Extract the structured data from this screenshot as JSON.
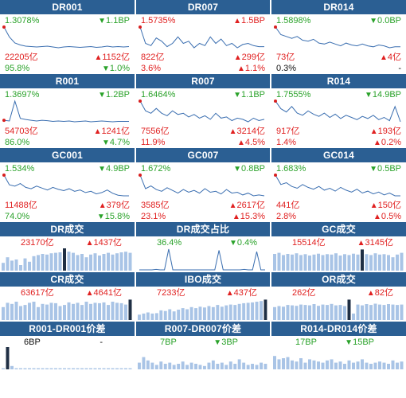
{
  "colors": {
    "header": "#2b5f93",
    "up": "#e02020",
    "down": "#2aa22a",
    "line": "#3a6eb0",
    "bar": "#a9c4e6",
    "bar_dark": "#1f2f44"
  },
  "rate_tiles": [
    {
      "title": "DR001",
      "rate": "1.3078%",
      "rate_color": "green",
      "change": "1.1BP",
      "change_dir": "down",
      "volume": "22205亿",
      "volume_change": "1152亿",
      "volume_dir": "up",
      "share": "95.8%",
      "share_color": "green",
      "share_change": "1.0%",
      "share_dir": "down",
      "series": [
        1.8,
        1.55,
        1.4,
        1.35,
        1.32,
        1.31,
        1.3,
        1.31,
        1.32,
        1.3,
        1.28,
        1.3,
        1.31,
        1.3,
        1.29,
        1.3,
        1.31,
        1.29,
        1.3,
        1.32,
        1.3,
        1.31,
        1.3,
        1.31
      ]
    },
    {
      "title": "DR007",
      "rate": "1.5735%",
      "rate_color": "red",
      "change": "1.5BP",
      "change_dir": "up",
      "volume": "822亿",
      "volume_change": "299亿",
      "volume_dir": "up",
      "share": "3.6%",
      "share_color": "red",
      "share_change": "1.1%",
      "share_dir": "up",
      "series": [
        1.75,
        1.6,
        1.58,
        1.65,
        1.62,
        1.57,
        1.6,
        1.66,
        1.6,
        1.62,
        1.56,
        1.6,
        1.58,
        1.66,
        1.6,
        1.64,
        1.58,
        1.6,
        1.56,
        1.59,
        1.6,
        1.58,
        1.57,
        1.57
      ]
    },
    {
      "title": "DR014",
      "rate": "1.5898%",
      "rate_color": "green",
      "change": "0.0BP",
      "change_dir": "down",
      "volume": "73亿",
      "volume_change": "4亿",
      "volume_dir": "up",
      "share": "0.3%",
      "share_color": "black",
      "share_change": "-",
      "share_dir": "none",
      "series": [
        1.8,
        1.72,
        1.7,
        1.68,
        1.7,
        1.66,
        1.65,
        1.67,
        1.63,
        1.62,
        1.64,
        1.62,
        1.6,
        1.63,
        1.61,
        1.6,
        1.62,
        1.6,
        1.59,
        1.61,
        1.6,
        1.58,
        1.59,
        1.59
      ]
    },
    {
      "title": "R001",
      "rate": "1.3697%",
      "rate_color": "green",
      "change": "1.2BP",
      "change_dir": "down",
      "volume": "54703亿",
      "volume_change": "1241亿",
      "volume_dir": "up",
      "share": "86.0%",
      "share_color": "green",
      "share_change": "4.7%",
      "share_dir": "down",
      "series": [
        1.4,
        1.38,
        1.9,
        1.45,
        1.42,
        1.4,
        1.38,
        1.4,
        1.39,
        1.37,
        1.38,
        1.37,
        1.38,
        1.36,
        1.37,
        1.38,
        1.36,
        1.37,
        1.38,
        1.37,
        1.36,
        1.37,
        1.37,
        1.37
      ]
    },
    {
      "title": "R007",
      "rate": "1.6464%",
      "rate_color": "green",
      "change": "1.1BP",
      "change_dir": "down",
      "volume": "7556亿",
      "volume_change": "3214亿",
      "volume_dir": "up",
      "share": "11.9%",
      "share_color": "red",
      "share_change": "4.5%",
      "share_dir": "up",
      "series": [
        1.8,
        1.72,
        1.7,
        1.74,
        1.7,
        1.68,
        1.72,
        1.69,
        1.7,
        1.67,
        1.69,
        1.66,
        1.68,
        1.65,
        1.7,
        1.66,
        1.67,
        1.64,
        1.66,
        1.65,
        1.63,
        1.66,
        1.64,
        1.65
      ]
    },
    {
      "title": "R014",
      "rate": "1.7555%",
      "rate_color": "green",
      "change": "14.9BP",
      "change_dir": "down",
      "volume": "917亿",
      "volume_change": "193亿",
      "volume_dir": "up",
      "share": "1.4%",
      "share_color": "red",
      "share_change": "0.2%",
      "share_dir": "up",
      "series": [
        1.95,
        1.88,
        1.85,
        1.9,
        1.84,
        1.82,
        1.86,
        1.83,
        1.81,
        1.84,
        1.8,
        1.83,
        1.79,
        1.82,
        1.8,
        1.78,
        1.81,
        1.79,
        1.82,
        1.78,
        1.8,
        1.77,
        1.9,
        1.76
      ]
    },
    {
      "title": "GC001",
      "rate": "1.534%",
      "rate_color": "green",
      "change": "4.9BP",
      "change_dir": "down",
      "volume": "11488亿",
      "volume_change": "379亿",
      "volume_dir": "up",
      "share": "74.0%",
      "share_color": "green",
      "share_change": "15.8%",
      "share_dir": "down",
      "series": [
        1.85,
        1.7,
        1.68,
        1.72,
        1.66,
        1.64,
        1.68,
        1.65,
        1.62,
        1.66,
        1.63,
        1.61,
        1.64,
        1.6,
        1.62,
        1.58,
        1.6,
        1.56,
        1.58,
        1.62,
        1.57,
        1.54,
        1.53,
        1.53
      ]
    },
    {
      "title": "GC007",
      "rate": "1.672%",
      "rate_color": "green",
      "change": "0.8BP",
      "change_dir": "down",
      "volume": "3585亿",
      "volume_change": "2617亿",
      "volume_dir": "up",
      "share": "23.1%",
      "share_color": "red",
      "share_change": "15.3%",
      "share_dir": "up",
      "series": [
        1.9,
        1.75,
        1.78,
        1.74,
        1.72,
        1.76,
        1.73,
        1.7,
        1.74,
        1.71,
        1.73,
        1.7,
        1.75,
        1.71,
        1.72,
        1.69,
        1.74,
        1.7,
        1.71,
        1.68,
        1.7,
        1.67,
        1.68,
        1.67
      ]
    },
    {
      "title": "GC014",
      "rate": "1.683%",
      "rate_color": "green",
      "change": "0.5BP",
      "change_dir": "down",
      "volume": "441亿",
      "volume_change": "150亿",
      "volume_dir": "up",
      "share": "2.8%",
      "share_color": "red",
      "share_change": "0.5%",
      "share_dir": "up",
      "series": [
        1.9,
        1.8,
        1.82,
        1.78,
        1.76,
        1.8,
        1.77,
        1.75,
        1.78,
        1.74,
        1.76,
        1.73,
        1.77,
        1.74,
        1.72,
        1.75,
        1.71,
        1.73,
        1.7,
        1.72,
        1.69,
        1.71,
        1.68,
        1.68
      ]
    }
  ],
  "volume_tiles": [
    {
      "title": "DR成交",
      "value": "23170亿",
      "value_color": "red",
      "change": "1437亿",
      "change_dir": "up",
      "bars": [
        0.35,
        0.6,
        0.45,
        0.5,
        0.25,
        0.55,
        0.4,
        0.65,
        0.7,
        0.75,
        0.72,
        0.78,
        0.8,
        0.82,
        1.0,
        0.85,
        0.8,
        0.7,
        0.75,
        0.6,
        0.72,
        0.78,
        0.68,
        0.75,
        0.8,
        0.72,
        0.78,
        0.82,
        0.85,
        0.8
      ],
      "dark_index": 14
    },
    {
      "title": "DR成交占比",
      "value": "36.4%",
      "value_color": "green",
      "change": "0.4%",
      "change_dir": "down",
      "series": [
        0.1,
        0.1,
        0.1,
        0.1,
        0.12,
        0.1,
        0.1,
        0.95,
        0.1,
        0.1,
        0.1,
        0.1,
        0.1,
        0.1,
        0.1,
        0.1,
        0.1,
        0.1,
        0.1,
        0.9,
        0.1,
        0.1,
        0.1,
        0.1,
        0.1,
        0.12,
        0.1,
        0.1,
        0.85,
        0.1,
        0.1
      ],
      "line": true
    },
    {
      "title": "GC成交",
      "value": "15514亿",
      "value_color": "red",
      "change": "3145亿",
      "change_dir": "up",
      "bars": [
        0.75,
        0.8,
        0.7,
        0.75,
        0.72,
        0.78,
        0.7,
        0.74,
        0.68,
        0.72,
        0.76,
        0.7,
        0.74,
        0.72,
        0.78,
        0.68,
        0.74,
        0.7,
        0.76,
        0.72,
        0.95,
        0.74,
        0.7,
        0.78,
        0.72,
        0.74,
        0.7,
        0.6,
        0.72,
        0.8
      ],
      "dark_index": 20
    },
    {
      "title": "CR成交",
      "value": "63617亿",
      "value_color": "red",
      "change": "4641亿",
      "change_dir": "up",
      "bars": [
        0.6,
        0.8,
        0.75,
        0.85,
        0.65,
        0.7,
        0.8,
        0.85,
        0.6,
        0.75,
        0.72,
        0.8,
        0.78,
        0.65,
        0.7,
        0.82,
        0.75,
        0.8,
        0.7,
        0.85,
        0.75,
        0.8,
        0.78,
        0.82,
        0.7,
        0.85,
        0.8,
        0.78,
        0.72,
        0.95
      ],
      "dark_index": 29
    },
    {
      "title": "IBO成交",
      "value": "7233亿",
      "value_color": "red",
      "change": "437亿",
      "change_dir": "up",
      "bars": [
        0.25,
        0.3,
        0.35,
        0.3,
        0.32,
        0.45,
        0.42,
        0.5,
        0.4,
        0.48,
        0.55,
        0.5,
        0.6,
        0.55,
        0.62,
        0.58,
        0.65,
        0.6,
        0.7,
        0.62,
        0.68,
        0.72,
        0.7,
        0.75,
        0.78,
        0.8,
        0.82,
        0.85,
        0.88,
        0.95
      ],
      "dark_index": 29
    },
    {
      "title": "OR成交",
      "value": "262亿",
      "value_color": "red",
      "change": "82亿",
      "change_dir": "up",
      "bars": [
        0.6,
        0.65,
        0.62,
        0.7,
        0.68,
        0.66,
        0.72,
        0.7,
        0.68,
        0.74,
        0.66,
        0.72,
        0.7,
        0.75,
        0.68,
        0.7,
        0.65,
        0.95,
        0.3,
        0.72,
        0.68,
        0.74,
        0.7,
        0.76,
        0.72,
        0.7,
        0.74,
        0.72,
        0.7,
        0.72
      ],
      "dark_index": 17
    }
  ],
  "spread_tiles": [
    {
      "title": "R001-DR001价差",
      "value": "6BP",
      "value_color": "black",
      "change": "-",
      "change_dir": "none",
      "bars": [
        0.05,
        1.0,
        0.15,
        0.05,
        0.05,
        0.05,
        0.05,
        0.05,
        0.05,
        0.05,
        0.05,
        0.05,
        0.05,
        0.05,
        0.05,
        0.05,
        0.05,
        0.05,
        0.05,
        0.05,
        0.05,
        0.05,
        0.05,
        0.05,
        0.05,
        0.05,
        0.05,
        0.05,
        0.05,
        0.05
      ],
      "dark_index": 1
    },
    {
      "title": "R007-DR007价差",
      "value": "7BP",
      "value_color": "green",
      "change": "3BP",
      "change_dir": "down",
      "bars": [
        0.3,
        0.55,
        0.4,
        0.3,
        0.2,
        0.35,
        0.25,
        0.3,
        0.2,
        0.25,
        0.35,
        0.2,
        0.3,
        0.25,
        0.2,
        0.15,
        0.3,
        0.4,
        0.25,
        0.3,
        0.2,
        0.35,
        0.25,
        0.45,
        0.3,
        0.2,
        0.25,
        0.2,
        0.3,
        0.25
      ],
      "dark_index": -1
    },
    {
      "title": "R014-DR014价差",
      "value": "17BP",
      "value_color": "green",
      "change": "15BP",
      "change_dir": "down",
      "bars": [
        0.6,
        0.45,
        0.5,
        0.55,
        0.4,
        0.35,
        0.5,
        0.3,
        0.45,
        0.4,
        0.35,
        0.3,
        0.4,
        0.45,
        0.3,
        0.35,
        0.25,
        0.4,
        0.3,
        0.35,
        0.45,
        0.3,
        0.25,
        0.3,
        0.35,
        0.3,
        0.25,
        0.4,
        0.3,
        0.35
      ],
      "dark_index": -1
    }
  ],
  "glyphs": {
    "up": "▲",
    "down": "▼"
  }
}
